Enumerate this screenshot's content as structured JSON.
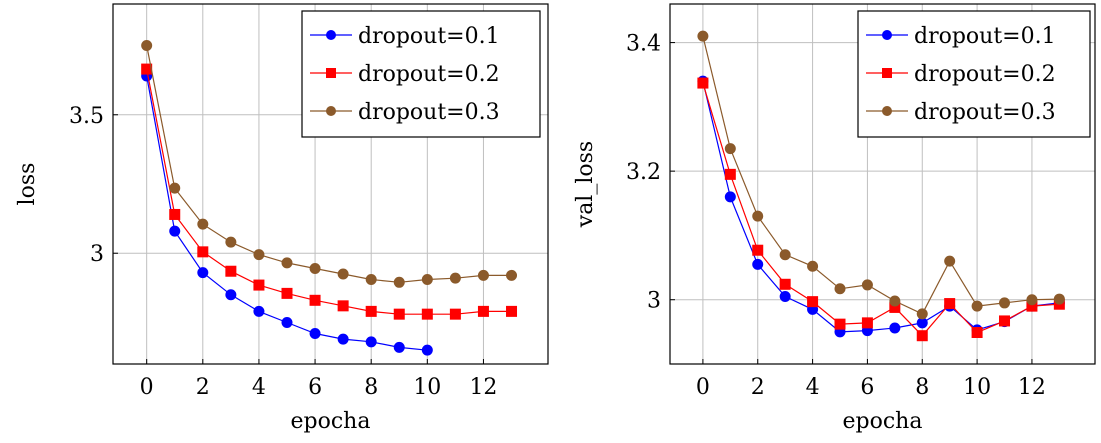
{
  "chart_data": [
    {
      "type": "line",
      "xlabel": "epocha",
      "ylabel": "loss",
      "xlim": [
        -1.2,
        14.3
      ],
      "ylim": [
        2.6,
        3.9
      ],
      "xticks": [
        0,
        2,
        4,
        6,
        8,
        10,
        12
      ],
      "xtick_labels": [
        "0",
        "2",
        "4",
        "6",
        "8",
        "10",
        "12"
      ],
      "yticks": [
        3.0,
        3.5
      ],
      "ytick_labels": [
        "3",
        "3.5"
      ],
      "grid": true,
      "legend_position": "top-right",
      "series": [
        {
          "name": "dropout=0.1",
          "color": "#0000ff",
          "marker": "circle",
          "x": [
            0,
            1,
            2,
            3,
            4,
            5,
            6,
            7,
            8,
            9,
            10
          ],
          "y": [
            3.64,
            3.08,
            2.93,
            2.85,
            2.79,
            2.75,
            2.71,
            2.69,
            2.68,
            2.66,
            2.65
          ]
        },
        {
          "name": "dropout=0.2",
          "color": "#ff0000",
          "marker": "square",
          "x": [
            0,
            1,
            2,
            3,
            4,
            5,
            6,
            7,
            8,
            9,
            10,
            11,
            12,
            13
          ],
          "y": [
            3.665,
            3.14,
            3.005,
            2.935,
            2.885,
            2.855,
            2.83,
            2.81,
            2.79,
            2.78,
            2.78,
            2.78,
            2.79,
            2.79
          ]
        },
        {
          "name": "dropout=0.3",
          "color": "#8b5a2b",
          "marker": "circle",
          "x": [
            0,
            1,
            2,
            3,
            4,
            5,
            6,
            7,
            8,
            9,
            10,
            11,
            12,
            13
          ],
          "y": [
            3.75,
            3.235,
            3.105,
            3.04,
            2.995,
            2.965,
            2.945,
            2.925,
            2.905,
            2.895,
            2.905,
            2.91,
            2.92,
            2.92
          ]
        }
      ]
    },
    {
      "type": "line",
      "xlabel": "epocha",
      "ylabel": "val_loss",
      "xlim": [
        -1.2,
        14.3
      ],
      "ylim": [
        2.9,
        3.46
      ],
      "xticks": [
        0,
        2,
        4,
        6,
        8,
        10,
        12
      ],
      "xtick_labels": [
        "0",
        "2",
        "4",
        "6",
        "8",
        "10",
        "12"
      ],
      "yticks": [
        3.0,
        3.2,
        3.4
      ],
      "ytick_labels": [
        "3",
        "3.2",
        "3.4"
      ],
      "grid": true,
      "legend_position": "top-right",
      "series": [
        {
          "name": "dropout=0.1",
          "color": "#0000ff",
          "marker": "circle",
          "x": [
            0,
            1,
            2,
            3,
            4,
            5,
            6,
            7,
            8,
            9,
            10,
            11,
            12,
            13
          ],
          "y": [
            3.34,
            3.16,
            3.055,
            3.005,
            2.985,
            2.95,
            2.952,
            2.956,
            2.964,
            2.99,
            2.953,
            2.966,
            2.99,
            2.995
          ]
        },
        {
          "name": "dropout=0.2",
          "color": "#ff0000",
          "marker": "square",
          "x": [
            0,
            1,
            2,
            3,
            4,
            5,
            6,
            7,
            8,
            9,
            10,
            11,
            12,
            13
          ],
          "y": [
            3.337,
            3.195,
            3.077,
            3.024,
            2.997,
            2.962,
            2.964,
            2.988,
            2.944,
            2.994,
            2.949,
            2.967,
            2.99,
            2.993
          ]
        },
        {
          "name": "dropout=0.3",
          "color": "#8b5a2b",
          "marker": "circle",
          "x": [
            0,
            1,
            2,
            3,
            4,
            5,
            6,
            7,
            8,
            9,
            10,
            11,
            12,
            13
          ],
          "y": [
            3.41,
            3.235,
            3.13,
            3.07,
            3.052,
            3.017,
            3.023,
            2.998,
            2.978,
            3.06,
            2.99,
            2.995,
            3.0,
            3.001
          ]
        }
      ]
    }
  ]
}
